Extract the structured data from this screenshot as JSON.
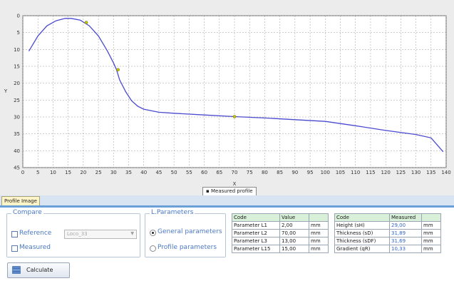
{
  "chart_data": {
    "type": "line",
    "xlabel": "X",
    "ylabel": "Y",
    "xlim": [
      0,
      140
    ],
    "ylim": [
      0,
      45
    ],
    "y_inverted": true,
    "grid": true,
    "x_ticks": [
      "0",
      "5",
      "10",
      "15",
      "20",
      "25",
      "30",
      "35",
      "40",
      "45",
      "50",
      "55",
      "60",
      "65",
      "70",
      "75",
      "80",
      "85",
      "90",
      "95",
      "100",
      "105",
      "110",
      "115",
      "120",
      "125",
      "130",
      "135",
      "140"
    ],
    "y_ticks": [
      "0",
      "5",
      "10",
      "15",
      "20",
      "25",
      "30",
      "35",
      "40",
      "45"
    ],
    "legend": [
      "Measured profile"
    ],
    "legend_position": "bottom-center",
    "series": [
      {
        "name": "Measured profile",
        "x": [
          2,
          5,
          8,
          11,
          14,
          16,
          19,
          22,
          25,
          28,
          30,
          31,
          32,
          34,
          36,
          38,
          40,
          45,
          50,
          60,
          70,
          80,
          90,
          100,
          110,
          120,
          130,
          135,
          139
        ],
        "y": [
          10.5,
          6,
          3,
          1.5,
          0.8,
          0.8,
          1.3,
          3,
          6,
          10.5,
          14,
          16,
          19,
          22.5,
          25.2,
          26.8,
          27.7,
          28.6,
          28.9,
          29.4,
          29.9,
          30.3,
          30.8,
          31.3,
          32.6,
          34,
          35.2,
          36.2,
          40.3
        ]
      }
    ],
    "markers": [
      {
        "x": 21,
        "y": 2
      },
      {
        "x": 31.5,
        "y": 16
      },
      {
        "x": 70,
        "y": 29.9
      }
    ]
  },
  "tabs": [
    {
      "label": "Profile Image"
    }
  ],
  "compare": {
    "title": "Compare",
    "reference_label": "Reference",
    "reference_combo_value": "Loco_33",
    "measured_label": "Measured"
  },
  "lparams": {
    "title": "L.Parameters",
    "general_label": "General parameters",
    "profile_label": "Profile parameters"
  },
  "params_table": {
    "headers": [
      "Code",
      "Value",
      ""
    ],
    "rows": [
      [
        "Parameter L1",
        "2,00",
        "mm"
      ],
      [
        "Parameter L2",
        "70,00",
        "mm"
      ],
      [
        "Parameter L3",
        "13,00",
        "mm"
      ],
      [
        "Parameter L15",
        "15,00",
        "mm"
      ]
    ]
  },
  "measured_table": {
    "headers": [
      "Code",
      "Measured",
      ""
    ],
    "rows": [
      [
        "Height (sH)",
        "29,00",
        "mm"
      ],
      [
        "Thickness (sD)",
        "31,89",
        "mm"
      ],
      [
        "Thickness (sDF)",
        "31,69",
        "mm"
      ],
      [
        "Gradient (qR)",
        "10,33",
        "mm"
      ]
    ]
  },
  "calculate_label": "Calculate"
}
